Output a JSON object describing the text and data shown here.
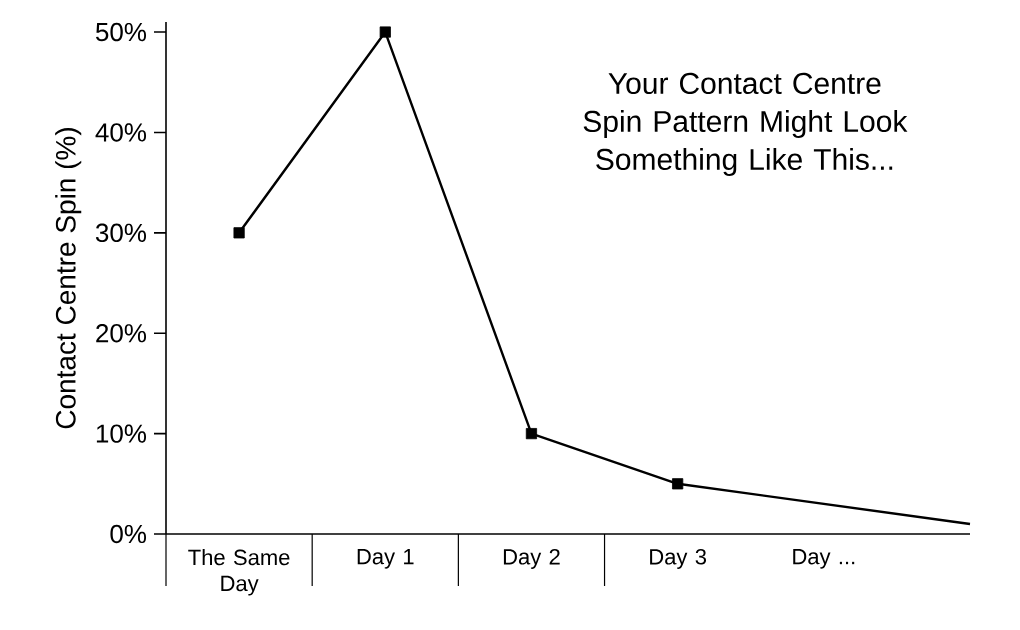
{
  "chart_data": {
    "type": "line",
    "ylabel": "Contact Centre Spin (%)",
    "categories": [
      "The Same Day",
      "Day 1",
      "Day 2",
      "Day 3",
      "Day ...",
      null
    ],
    "series": [
      {
        "color": "#000000",
        "values": [
          30,
          50,
          10,
          5,
          3,
          1
        ],
        "marker": "none"
      },
      {
        "type": "scatter",
        "color": "#000000",
        "values": [
          30,
          50,
          10,
          5,
          null,
          null
        ],
        "marker": "square"
      }
    ],
    "ylim": [
      0,
      51
    ],
    "yticks": [
      {
        "value": 0,
        "label": "0%"
      },
      {
        "value": 10,
        "label": "10%"
      },
      {
        "value": 20,
        "label": "20%"
      },
      {
        "value": 30,
        "label": "30%"
      },
      {
        "value": 40,
        "label": "40%"
      },
      {
        "value": 50,
        "label": "50%"
      }
    ],
    "grid": false,
    "line_style": "solid",
    "annotations": [
      "Your Contact Centre Spin Pattern Might Look Something Like This..."
    ]
  }
}
